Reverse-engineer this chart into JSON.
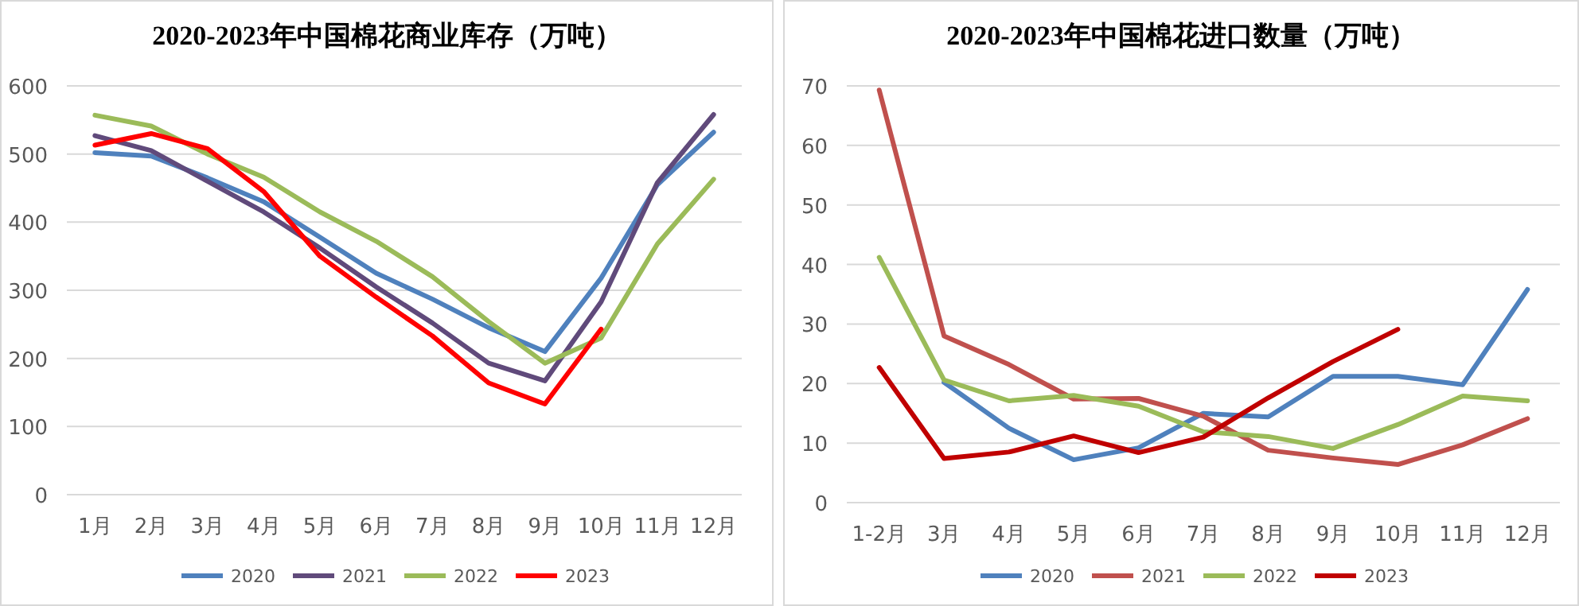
{
  "chart_data": [
    {
      "type": "line",
      "title": "2020-2023年中国棉花商业库存（万吨）",
      "categories": [
        "1月",
        "2月",
        "3月",
        "4月",
        "5月",
        "6月",
        "7月",
        "8月",
        "9月",
        "10月",
        "11月",
        "12月"
      ],
      "series": [
        {
          "name": "2020",
          "color": "#4f81bd",
          "values": [
            502,
            497,
            465,
            430,
            378,
            325,
            287,
            245,
            210,
            318,
            455,
            532
          ]
        },
        {
          "name": "2021",
          "color": "#604a7b",
          "values": [
            527,
            505,
            460,
            415,
            362,
            305,
            252,
            193,
            167,
            283,
            458,
            558
          ]
        },
        {
          "name": "2022",
          "color": "#9bbb59",
          "values": [
            557,
            541,
            500,
            466,
            415,
            372,
            320,
            254,
            193,
            230,
            368,
            463
          ]
        },
        {
          "name": "2023",
          "color": "#ff0000",
          "values": [
            513,
            530,
            508,
            445,
            350,
            290,
            233,
            164,
            133,
            243,
            null,
            null
          ]
        }
      ],
      "ylim": [
        0,
        600
      ],
      "yticks": [
        0,
        100,
        200,
        300,
        400,
        500,
        600
      ],
      "grid": "y",
      "legend": "bottom"
    },
    {
      "type": "line",
      "title": "2020-2023年中国棉花进口数量（万吨）",
      "categories": [
        "1-2月",
        "3月",
        "4月",
        "5月",
        "6月",
        "7月",
        "8月",
        "9月",
        "10月",
        "11月",
        "12月"
      ],
      "series": [
        {
          "name": "2020",
          "color": "#4f81bd",
          "values": [
            null,
            20.2,
            12.5,
            7.2,
            9.2,
            15.0,
            14.4,
            21.2,
            21.2,
            19.8,
            35.8
          ]
        },
        {
          "name": "2021",
          "color": "#c0504d",
          "values": [
            69.3,
            28.0,
            23.2,
            17.4,
            17.5,
            14.5,
            8.8,
            7.5,
            6.4,
            9.7,
            14.1
          ]
        },
        {
          "name": "2022",
          "color": "#9bbb59",
          "values": [
            41.2,
            20.6,
            17.1,
            18.0,
            16.2,
            11.9,
            11.1,
            9.1,
            13.1,
            17.9,
            17.1
          ]
        },
        {
          "name": "2023",
          "color": "#c00000",
          "values": [
            22.7,
            7.4,
            8.5,
            11.2,
            8.4,
            11.0,
            17.6,
            23.7,
            29.1,
            null,
            null
          ]
        }
      ],
      "ylim": [
        0,
        70
      ],
      "yticks": [
        0,
        10,
        20,
        30,
        40,
        50,
        60,
        70
      ],
      "grid": "y",
      "legend": "bottom"
    }
  ]
}
